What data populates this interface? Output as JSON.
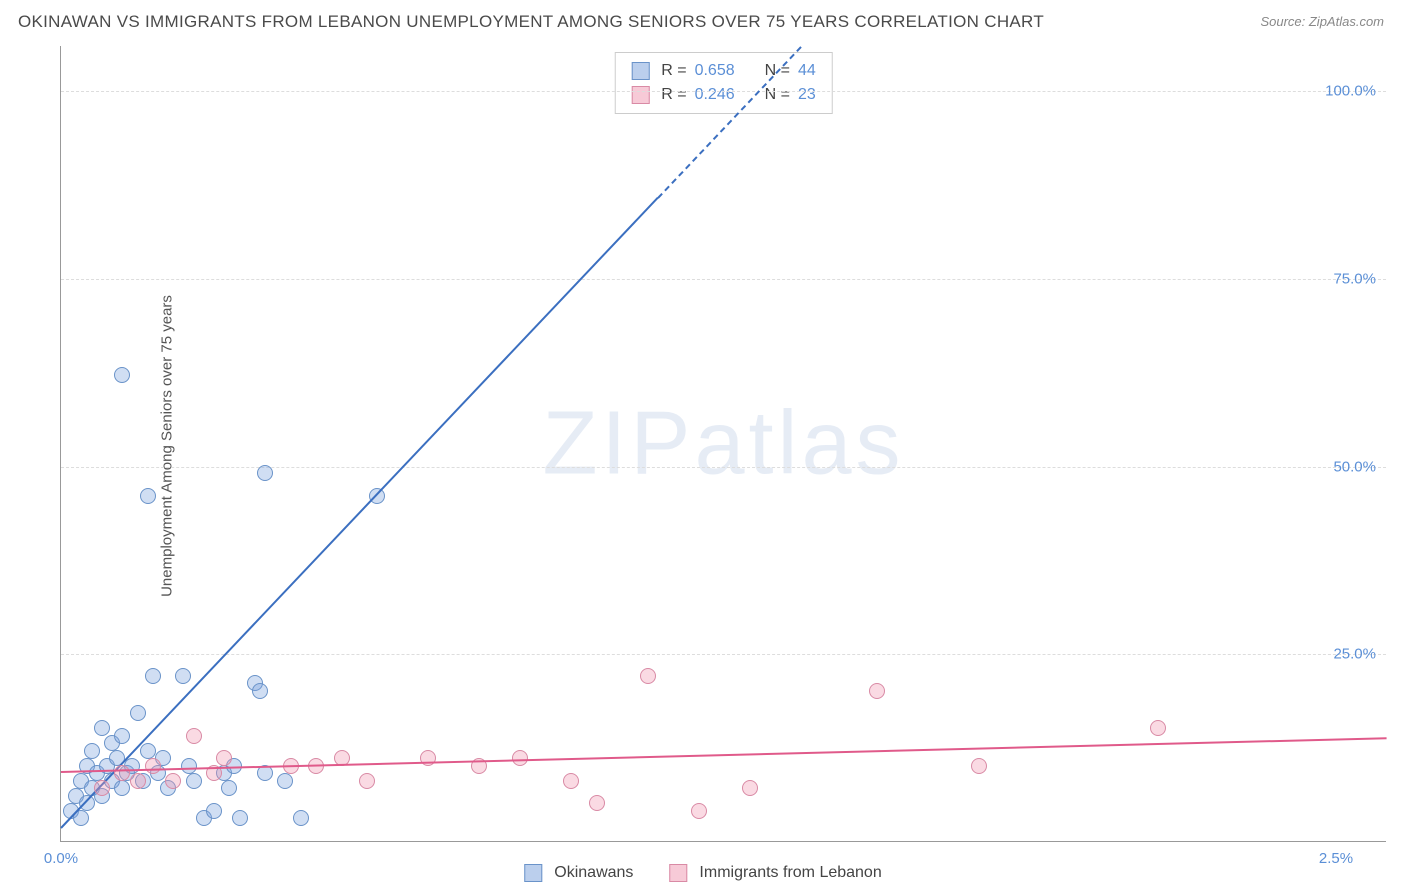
{
  "title": "OKINAWAN VS IMMIGRANTS FROM LEBANON UNEMPLOYMENT AMONG SENIORS OVER 75 YEARS CORRELATION CHART",
  "source": "Source: ZipAtlas.com",
  "ylabel": "Unemployment Among Seniors over 75 years",
  "watermark": "ZIPatlas",
  "chart": {
    "type": "scatter",
    "xlim": [
      0,
      2.6
    ],
    "ylim": [
      0,
      106
    ],
    "xticks": [
      {
        "pos": 0.0,
        "label": "0.0%"
      },
      {
        "pos": 2.5,
        "label": "2.5%"
      }
    ],
    "yticks": [
      {
        "pos": 25,
        "label": "25.0%"
      },
      {
        "pos": 50,
        "label": "50.0%"
      },
      {
        "pos": 75,
        "label": "75.0%"
      },
      {
        "pos": 100,
        "label": "100.0%"
      }
    ],
    "grid_color": "#dddddd",
    "axis_color": "#999999",
    "marker_radius": 8,
    "series": [
      {
        "name": "Okinawans",
        "color_fill": "rgba(120,160,220,0.35)",
        "color_stroke": "#6a93c9",
        "class": "blue",
        "R": "0.658",
        "N": "44",
        "regression": {
          "x1": 0.0,
          "y1": 2.0,
          "x2": 1.45,
          "y2": 106.0,
          "dashed_from_x": 1.17
        },
        "line_color": "#3b6fc0",
        "points": [
          [
            0.02,
            4
          ],
          [
            0.03,
            6
          ],
          [
            0.04,
            3
          ],
          [
            0.04,
            8
          ],
          [
            0.05,
            10
          ],
          [
            0.05,
            5
          ],
          [
            0.06,
            12
          ],
          [
            0.06,
            7
          ],
          [
            0.07,
            9
          ],
          [
            0.08,
            15
          ],
          [
            0.08,
            6
          ],
          [
            0.09,
            10
          ],
          [
            0.1,
            8
          ],
          [
            0.1,
            13
          ],
          [
            0.11,
            11
          ],
          [
            0.12,
            14
          ],
          [
            0.12,
            7
          ],
          [
            0.13,
            9
          ],
          [
            0.14,
            10
          ],
          [
            0.15,
            17
          ],
          [
            0.16,
            8
          ],
          [
            0.17,
            12
          ],
          [
            0.18,
            22
          ],
          [
            0.19,
            9
          ],
          [
            0.2,
            11
          ],
          [
            0.21,
            7
          ],
          [
            0.24,
            22
          ],
          [
            0.25,
            10
          ],
          [
            0.26,
            8
          ],
          [
            0.28,
            3
          ],
          [
            0.3,
            4
          ],
          [
            0.32,
            9
          ],
          [
            0.33,
            7
          ],
          [
            0.34,
            10
          ],
          [
            0.35,
            3
          ],
          [
            0.38,
            21
          ],
          [
            0.39,
            20
          ],
          [
            0.4,
            9
          ],
          [
            0.44,
            8
          ],
          [
            0.47,
            3
          ],
          [
            0.17,
            46
          ],
          [
            0.4,
            49
          ],
          [
            0.62,
            46
          ],
          [
            0.12,
            62
          ]
        ]
      },
      {
        "name": "Immigrants from Lebanon",
        "color_fill": "rgba(240,150,175,0.35)",
        "color_stroke": "#d98aa5",
        "class": "pink",
        "R": "0.246",
        "N": "23",
        "regression": {
          "x1": 0.0,
          "y1": 9.5,
          "x2": 2.6,
          "y2": 14.0,
          "dashed_from_x": 2.6
        },
        "line_color": "#e05a8a",
        "points": [
          [
            0.08,
            7
          ],
          [
            0.12,
            9
          ],
          [
            0.15,
            8
          ],
          [
            0.18,
            10
          ],
          [
            0.22,
            8
          ],
          [
            0.26,
            14
          ],
          [
            0.3,
            9
          ],
          [
            0.32,
            11
          ],
          [
            0.45,
            10
          ],
          [
            0.5,
            10
          ],
          [
            0.55,
            11
          ],
          [
            0.6,
            8
          ],
          [
            0.72,
            11
          ],
          [
            0.82,
            10
          ],
          [
            0.9,
            11
          ],
          [
            1.0,
            8
          ],
          [
            1.05,
            5
          ],
          [
            1.15,
            22
          ],
          [
            1.25,
            4
          ],
          [
            1.35,
            7
          ],
          [
            1.6,
            20
          ],
          [
            1.8,
            10
          ],
          [
            2.15,
            15
          ]
        ]
      }
    ]
  },
  "legend_top": {
    "r_label": "R =",
    "n_label": "N ="
  },
  "legend_bottom": [
    {
      "class": "blue",
      "label": "Okinawans"
    },
    {
      "class": "pink",
      "label": "Immigrants from Lebanon"
    }
  ]
}
